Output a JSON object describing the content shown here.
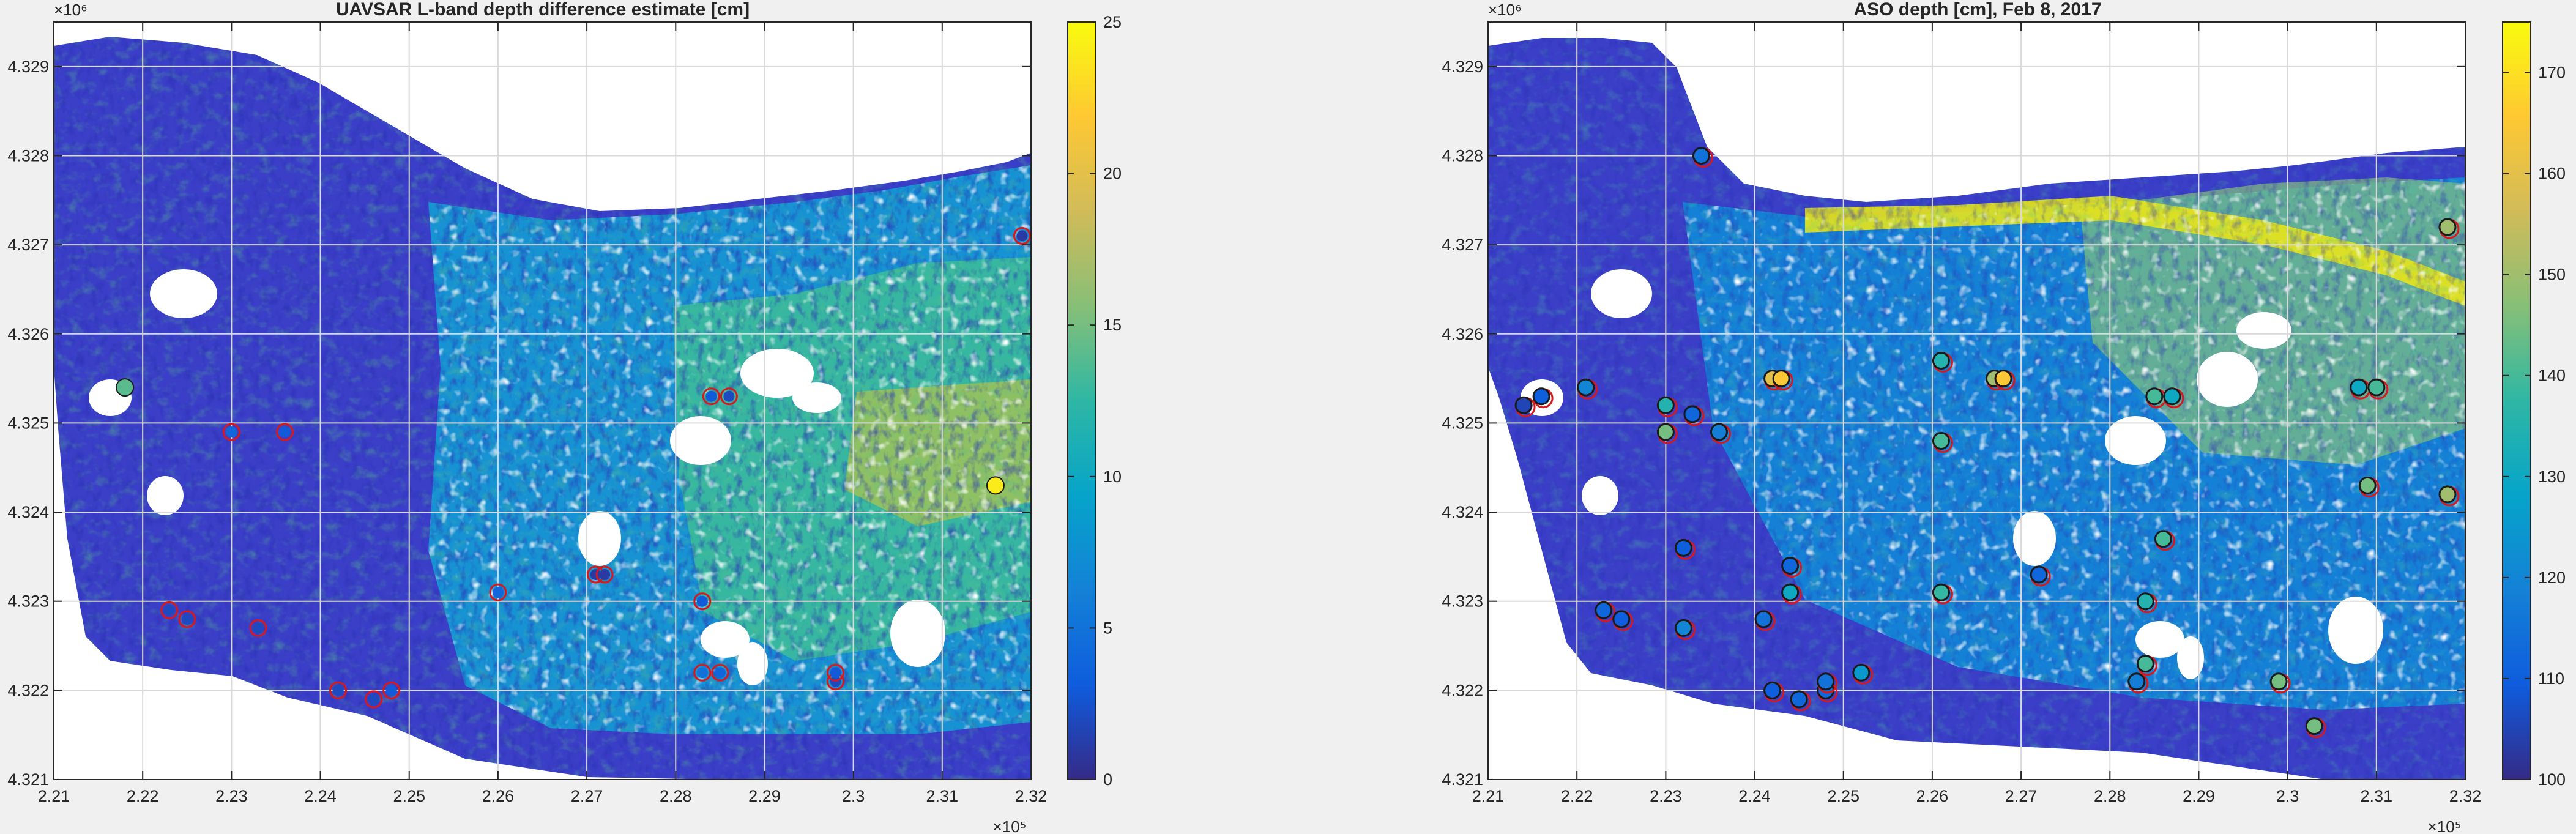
{
  "colors": {
    "figure_bg": "#f0f0f0",
    "axes_bg": "#ffffff",
    "grid": "#d9d9d9",
    "axis_text": "#262626",
    "site_marker_outline": "#d7191c",
    "model_marker_outline": "#1a1a1a",
    "parula": [
      "#352a87",
      "#0f5cdd",
      "#1481d6",
      "#06a4ca",
      "#2eb7a4",
      "#87bf77",
      "#d1bb59",
      "#fec832",
      "#f9fb0e"
    ]
  },
  "icons": {
    "colorbar": "parula-colorbar",
    "sites": "circle-marker"
  },
  "chart_data": [
    {
      "type": "heatmap",
      "title": "UAVSAR L-band depth difference estimate [cm]",
      "xlim": [
        221000,
        232000
      ],
      "ylim": [
        4321000,
        4329500
      ],
      "x_ticks": [
        "2.21",
        "2.22",
        "2.23",
        "2.24",
        "2.25",
        "2.26",
        "2.27",
        "2.28",
        "2.29",
        "2.3",
        "2.31",
        "2.32"
      ],
      "y_ticks": [
        "4.321",
        "4.322",
        "4.323",
        "4.324",
        "4.325",
        "4.326",
        "4.327",
        "4.328",
        "4.329"
      ],
      "x_exponent": "×10⁵",
      "y_exponent": "×10⁶",
      "grid": true,
      "colorbar": {
        "lim": [
          0,
          25
        ],
        "ticks": [
          "0",
          "5",
          "10",
          "15",
          "20",
          "25"
        ]
      },
      "points": [
        {
          "x": 221800,
          "y": 4325400,
          "v": 14
        },
        {
          "x": 223000,
          "y": 4324900,
          "v": 4
        },
        {
          "x": 223600,
          "y": 4324900,
          "v": 3
        },
        {
          "x": 222300,
          "y": 4322900,
          "v": 2
        },
        {
          "x": 222500,
          "y": 4322800,
          "v": 2
        },
        {
          "x": 223300,
          "y": 4322700,
          "v": 2
        },
        {
          "x": 224200,
          "y": 4322000,
          "v": 2
        },
        {
          "x": 224600,
          "y": 4321900,
          "v": 2
        },
        {
          "x": 224800,
          "y": 4322000,
          "v": 3
        },
        {
          "x": 226000,
          "y": 4323100,
          "v": 4
        },
        {
          "x": 227100,
          "y": 4323300,
          "v": 1
        },
        {
          "x": 227200,
          "y": 4323300,
          "v": 1
        },
        {
          "x": 228300,
          "y": 4323000,
          "v": 3
        },
        {
          "x": 228400,
          "y": 4325300,
          "v": 3
        },
        {
          "x": 228600,
          "y": 4325300,
          "v": 2
        },
        {
          "x": 228300,
          "y": 4322200,
          "v": 5
        },
        {
          "x": 228500,
          "y": 4322200,
          "v": 4
        },
        {
          "x": 229800,
          "y": 4322100,
          "v": 2
        },
        {
          "x": 229800,
          "y": 4322200,
          "v": 3
        },
        {
          "x": 231600,
          "y": 4324300,
          "v": 24
        },
        {
          "x": 231900,
          "y": 4327100,
          "v": 1
        }
      ]
    },
    {
      "type": "heatmap",
      "title": "ASO depth [cm], Feb 8, 2017",
      "xlim": [
        221000,
        232000
      ],
      "ylim": [
        4321000,
        4329500
      ],
      "x_ticks": [
        "2.21",
        "2.22",
        "2.23",
        "2.24",
        "2.25",
        "2.26",
        "2.27",
        "2.28",
        "2.29",
        "2.3",
        "2.31",
        "2.32"
      ],
      "y_ticks": [
        "4.321",
        "4.322",
        "4.323",
        "4.324",
        "4.325",
        "4.326",
        "4.327",
        "4.328",
        "4.329"
      ],
      "x_exponent": "×10⁵",
      "y_exponent": "×10⁶",
      "grid": true,
      "colorbar": {
        "lim": [
          100,
          175
        ],
        "ticks": [
          "100",
          "110",
          "120",
          "130",
          "140",
          "150",
          "160",
          "170"
        ]
      },
      "points": [
        {
          "x": 223400,
          "y": 4328000,
          "v": 115
        },
        {
          "x": 221400,
          "y": 4325200,
          "v": 105
        },
        {
          "x": 221600,
          "y": 4325300,
          "v": 110
        },
        {
          "x": 222100,
          "y": 4325400,
          "v": 120
        },
        {
          "x": 223000,
          "y": 4325200,
          "v": 135
        },
        {
          "x": 223000,
          "y": 4324900,
          "v": 145
        },
        {
          "x": 223300,
          "y": 4325100,
          "v": 112
        },
        {
          "x": 223600,
          "y": 4324900,
          "v": 118
        },
        {
          "x": 224200,
          "y": 4325500,
          "v": 160
        },
        {
          "x": 224300,
          "y": 4325500,
          "v": 165
        },
        {
          "x": 226100,
          "y": 4325700,
          "v": 135
        },
        {
          "x": 226100,
          "y": 4324800,
          "v": 140
        },
        {
          "x": 226700,
          "y": 4325500,
          "v": 150
        },
        {
          "x": 226800,
          "y": 4325500,
          "v": 165
        },
        {
          "x": 228500,
          "y": 4325300,
          "v": 140
        },
        {
          "x": 228700,
          "y": 4325300,
          "v": 130
        },
        {
          "x": 230800,
          "y": 4325400,
          "v": 130
        },
        {
          "x": 231000,
          "y": 4325400,
          "v": 140
        },
        {
          "x": 223200,
          "y": 4323600,
          "v": 110
        },
        {
          "x": 222300,
          "y": 4322900,
          "v": 112
        },
        {
          "x": 222500,
          "y": 4322800,
          "v": 110
        },
        {
          "x": 223200,
          "y": 4322700,
          "v": 120
        },
        {
          "x": 224100,
          "y": 4322800,
          "v": 115
        },
        {
          "x": 224400,
          "y": 4323100,
          "v": 130
        },
        {
          "x": 224400,
          "y": 4323400,
          "v": 112
        },
        {
          "x": 224200,
          "y": 4322000,
          "v": 110
        },
        {
          "x": 224500,
          "y": 4321900,
          "v": 112
        },
        {
          "x": 224800,
          "y": 4322000,
          "v": 112
        },
        {
          "x": 224800,
          "y": 4322100,
          "v": 115
        },
        {
          "x": 225200,
          "y": 4322200,
          "v": 125
        },
        {
          "x": 226100,
          "y": 4323100,
          "v": 138
        },
        {
          "x": 227200,
          "y": 4323300,
          "v": 112
        },
        {
          "x": 228400,
          "y": 4323000,
          "v": 135
        },
        {
          "x": 228300,
          "y": 4322100,
          "v": 118
        },
        {
          "x": 228400,
          "y": 4322300,
          "v": 140
        },
        {
          "x": 228600,
          "y": 4323700,
          "v": 140
        },
        {
          "x": 229900,
          "y": 4322100,
          "v": 145
        },
        {
          "x": 230300,
          "y": 4321600,
          "v": 145
        },
        {
          "x": 230900,
          "y": 4324300,
          "v": 145
        },
        {
          "x": 231800,
          "y": 4324200,
          "v": 150
        },
        {
          "x": 231800,
          "y": 4327200,
          "v": 150
        }
      ]
    }
  ]
}
